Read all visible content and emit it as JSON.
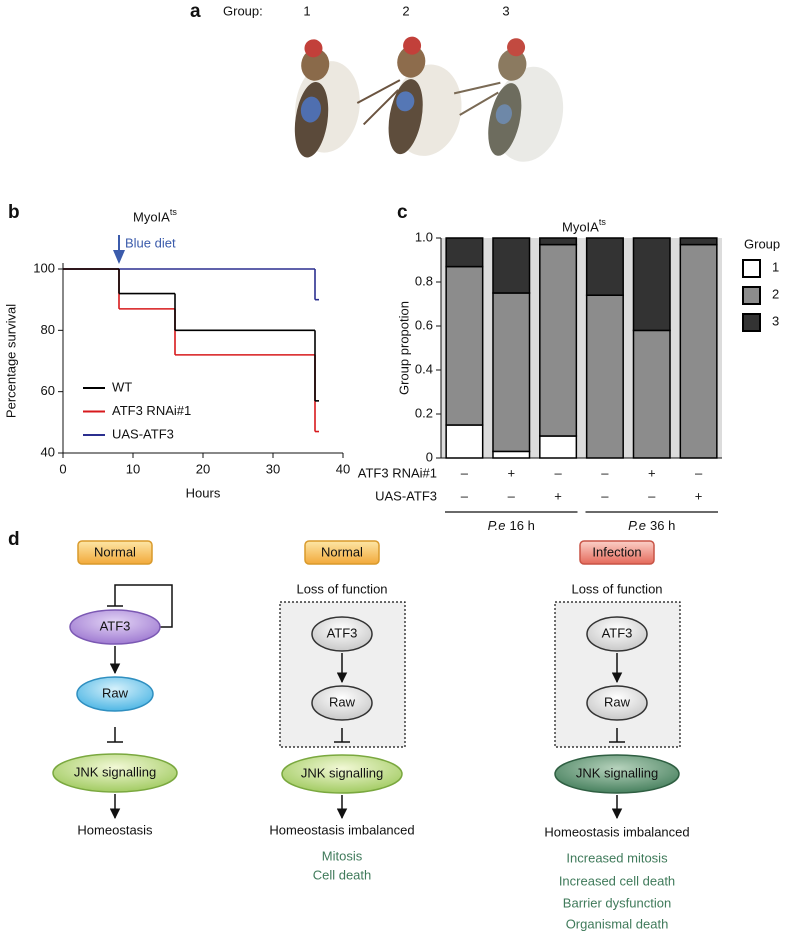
{
  "panel_a": {
    "label": "a",
    "group_label": "Group:",
    "groups": [
      "1",
      "2",
      "3"
    ]
  },
  "chart_data": [
    {
      "type": "step",
      "panel_label": "b",
      "title": "MyoIA",
      "title_superscript": "ts",
      "annotation": "Blue diet",
      "annotation_x": 8,
      "x": [
        0,
        8,
        16,
        36
      ],
      "series": [
        {
          "name": "WT",
          "color": "#000000",
          "values": [
            100,
            92,
            80,
            57
          ]
        },
        {
          "name": "ATF3 RNAi#1",
          "color": "#d7191c",
          "values": [
            100,
            87,
            72,
            47
          ]
        },
        {
          "name": "UAS-ATF3",
          "color": "#2b2f8f",
          "values": [
            100,
            100,
            100,
            90
          ]
        }
      ],
      "xlim": [
        0,
        40
      ],
      "xticks": [
        0,
        10,
        20,
        30,
        40
      ],
      "ylim": [
        40,
        100
      ],
      "yticks": [
        40,
        60,
        80,
        100
      ],
      "xlabel": "Hours",
      "ylabel": "Percentage survival"
    },
    {
      "type": "stacked_bar",
      "panel_label": "c",
      "title": "MyoIA",
      "title_superscript": "ts",
      "ylabel": "Group propotion",
      "legend_title": "Group",
      "series": [
        {
          "name": "1",
          "color": "#ffffff",
          "values": [
            0.15,
            0.03,
            0.1,
            0,
            0,
            0
          ]
        },
        {
          "name": "2",
          "color": "#8c8c8c",
          "values": [
            0.72,
            0.72,
            0.87,
            0.74,
            0.58,
            0.97
          ]
        },
        {
          "name": "3",
          "color": "#333333",
          "values": [
            0.13,
            0.25,
            0.03,
            0.26,
            0.42,
            0.03
          ]
        }
      ],
      "conditions": [
        {
          "name": "ATF3 RNAi#1",
          "values": [
            "–",
            "+",
            "–",
            "–",
            "+",
            "–"
          ]
        },
        {
          "name": "UAS-ATF3",
          "values": [
            "–",
            "–",
            "+",
            "–",
            "–",
            "+"
          ]
        }
      ],
      "groups": [
        {
          "italic": "P.e",
          "label": "16 h"
        },
        {
          "italic": "P.e",
          "label": "36 h"
        }
      ],
      "ylim": [
        0,
        1
      ],
      "yticks": [
        0,
        0.2,
        0.4,
        0.6,
        0.8,
        {
          "value": 1,
          "label": "1.0"
        }
      ]
    }
  ],
  "panel_d": {
    "label": "d",
    "columns": [
      {
        "condition": "Normal",
        "nodes": [
          "ATF3",
          "Raw",
          "JNK signalling"
        ],
        "outcome": "Homeostasis"
      },
      {
        "condition": "Normal",
        "box_title": "Loss of function",
        "nodes": [
          "ATF3",
          "Raw",
          "JNK signalling"
        ],
        "outcome": "Homeostasis imbalanced",
        "effects": [
          "Mitosis",
          "Cell death"
        ]
      },
      {
        "condition": "Infection",
        "box_title": "Loss of function",
        "nodes": [
          "ATF3",
          "Raw",
          "JNK signalling"
        ],
        "outcome": "Homeostasis imbalanced",
        "effects": [
          "Increased mitosis",
          "Increased cell death",
          "Barrier dysfunction",
          "Organismal death"
        ]
      }
    ]
  }
}
